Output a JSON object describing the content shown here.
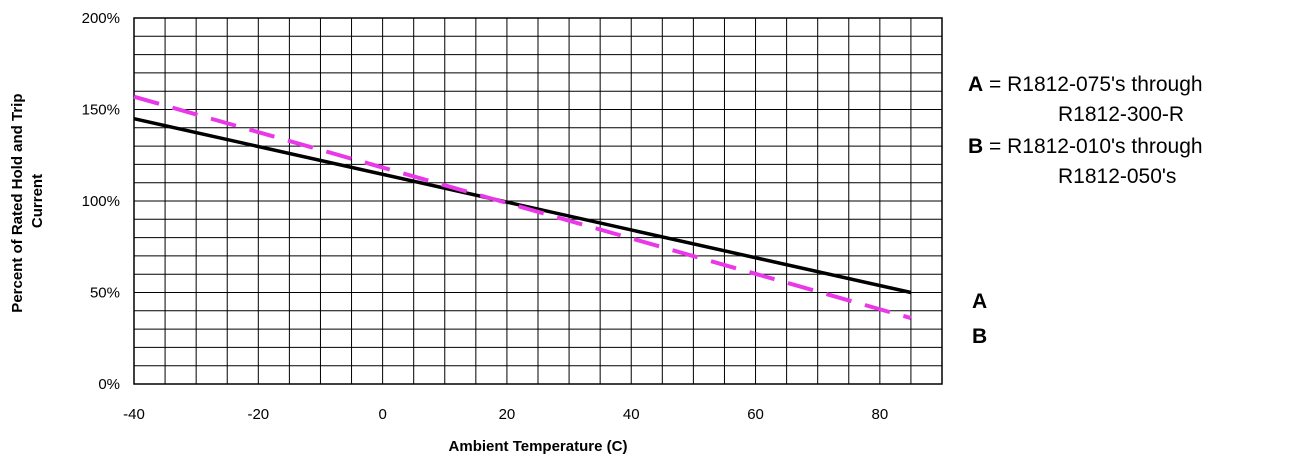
{
  "chart_data": {
    "type": "line",
    "title": "",
    "xlabel": "Ambient Temperature (C)",
    "ylabel_lines": [
      "Percent of Rated Hold  and Trip",
      "Current"
    ],
    "xlim": [
      -40,
      90
    ],
    "ylim": [
      0,
      200
    ],
    "x_ticks": [
      -40,
      -20,
      0,
      20,
      40,
      60,
      80
    ],
    "x_tick_labels": [
      "-40",
      "-20",
      "0",
      "20",
      "40",
      "60",
      "80"
    ],
    "y_ticks": [
      0,
      50,
      100,
      150,
      200
    ],
    "y_tick_labels": [
      "0%",
      "50%",
      "100%",
      "150%",
      "200%"
    ],
    "grid": true,
    "series": [
      {
        "name": "A",
        "style": "solid",
        "color": "#000000",
        "x": [
          -40,
          85
        ],
        "y": [
          145,
          50
        ]
      },
      {
        "name": "B",
        "style": "dashed",
        "color": "#e838e8",
        "x": [
          -40,
          85
        ],
        "y": [
          157,
          36
        ]
      }
    ]
  },
  "legend": {
    "a_key": "A",
    "a_eq": " = R1812-075's through",
    "a_cont": "R1812-300-R",
    "b_key": "B",
    "b_eq": " = R1812-010's through",
    "b_cont": "R1812-050's"
  },
  "end_labels": {
    "a": "A",
    "b": "B"
  }
}
